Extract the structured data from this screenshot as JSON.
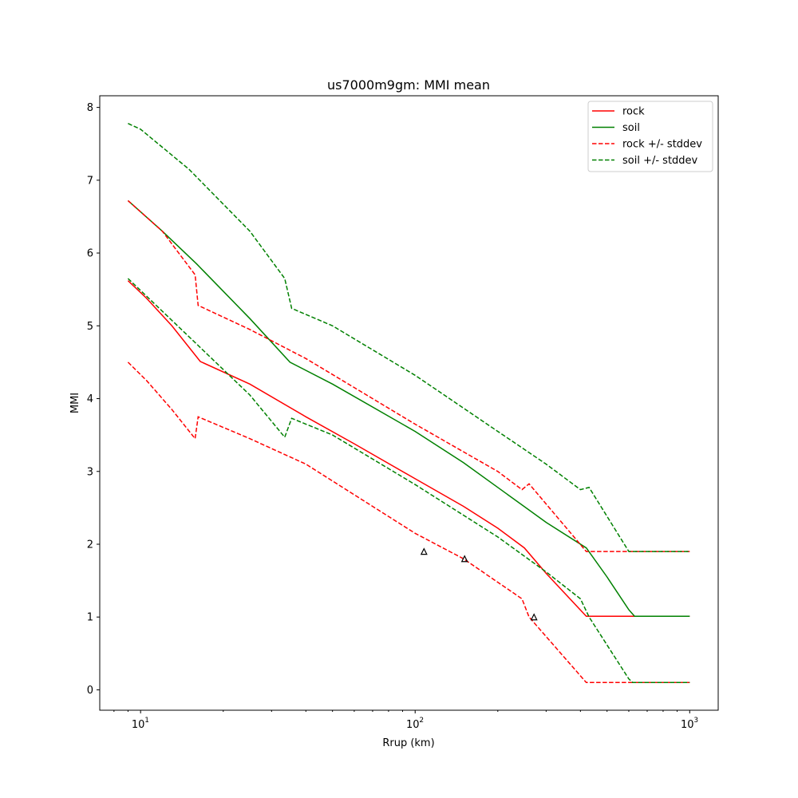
{
  "chart_data": {
    "type": "line",
    "title": "us7000m9gm: MMI mean",
    "xlabel": "Rrup (km)",
    "ylabel": "MMI",
    "xscale": "log",
    "xlim": [
      7.1,
      1270
    ],
    "ylim": [
      -0.28,
      8.16
    ],
    "xticks": [
      {
        "v": 10,
        "base": "10",
        "exp": "1"
      },
      {
        "v": 100,
        "base": "10",
        "exp": "2"
      },
      {
        "v": 1000,
        "base": "10",
        "exp": "3"
      }
    ],
    "yticks": [
      0,
      1,
      2,
      3,
      4,
      5,
      6,
      7,
      8
    ],
    "legend_position": "top-right",
    "series": [
      {
        "name": "rock",
        "color": "#ff0000",
        "dash": false,
        "points": [
          [
            9,
            5.62
          ],
          [
            10.5,
            5.38
          ],
          [
            13,
            5.0
          ],
          [
            16.5,
            4.51
          ],
          [
            25,
            4.2
          ],
          [
            40,
            3.75
          ],
          [
            60,
            3.38
          ],
          [
            100,
            2.9
          ],
          [
            150,
            2.52
          ],
          [
            200,
            2.22
          ],
          [
            250,
            1.95
          ],
          [
            300,
            1.6
          ],
          [
            420,
            1.01
          ],
          [
            1000,
            1.01
          ]
        ]
      },
      {
        "name": "soil",
        "color": "#008000",
        "dash": false,
        "points": [
          [
            9,
            6.72
          ],
          [
            12,
            6.3
          ],
          [
            16,
            5.85
          ],
          [
            25,
            5.1
          ],
          [
            35,
            4.5
          ],
          [
            50,
            4.2
          ],
          [
            100,
            3.55
          ],
          [
            150,
            3.12
          ],
          [
            200,
            2.78
          ],
          [
            300,
            2.3
          ],
          [
            420,
            1.95
          ],
          [
            500,
            1.55
          ],
          [
            600,
            1.1
          ],
          [
            630,
            1.01
          ],
          [
            1000,
            1.01
          ]
        ]
      },
      {
        "name": "rock +/- stddev",
        "color": "#ff0000",
        "dash": true,
        "lines": [
          [
            [
              9,
              6.72
            ],
            [
              12,
              6.3
            ],
            [
              15.8,
              5.7
            ],
            [
              16.2,
              5.28
            ],
            [
              25,
              4.95
            ],
            [
              40,
              4.55
            ],
            [
              100,
              3.65
            ],
            [
              200,
              3.0
            ],
            [
              245,
              2.75
            ],
            [
              260,
              2.83
            ],
            [
              420,
              1.9
            ],
            [
              1000,
              1.9
            ]
          ],
          [
            [
              9,
              4.5
            ],
            [
              10.5,
              4.25
            ],
            [
              13,
              3.85
            ],
            [
              15.8,
              3.45
            ],
            [
              16.2,
              3.75
            ],
            [
              25,
              3.45
            ],
            [
              40,
              3.1
            ],
            [
              100,
              2.15
            ],
            [
              150,
              1.8
            ],
            [
              245,
              1.25
            ],
            [
              260,
              1.0
            ],
            [
              420,
              0.1
            ],
            [
              1000,
              0.1
            ]
          ]
        ]
      },
      {
        "name": "soil +/- stddev",
        "color": "#008000",
        "dash": true,
        "lines": [
          [
            [
              9,
              7.78
            ],
            [
              10,
              7.7
            ],
            [
              15,
              7.15
            ],
            [
              25,
              6.3
            ],
            [
              33.5,
              5.65
            ],
            [
              35.5,
              5.24
            ],
            [
              50,
              5.0
            ],
            [
              100,
              4.32
            ],
            [
              200,
              3.55
            ],
            [
              300,
              3.1
            ],
            [
              400,
              2.75
            ],
            [
              430,
              2.78
            ],
            [
              600,
              1.9
            ],
            [
              1000,
              1.9
            ]
          ],
          [
            [
              9,
              5.65
            ],
            [
              12,
              5.2
            ],
            [
              16,
              4.75
            ],
            [
              25,
              4.05
            ],
            [
              33.5,
              3.47
            ],
            [
              35.5,
              3.73
            ],
            [
              50,
              3.5
            ],
            [
              100,
              2.82
            ],
            [
              200,
              2.1
            ],
            [
              300,
              1.62
            ],
            [
              400,
              1.25
            ],
            [
              430,
              1.0
            ],
            [
              600,
              0.15
            ],
            [
              620,
              0.1
            ],
            [
              1000,
              0.1
            ]
          ]
        ]
      }
    ],
    "observations": {
      "marker": "triangle",
      "points": [
        [
          107.7,
          1.9
        ],
        [
          151.4,
          1.8
        ],
        [
          271,
          1.0
        ]
      ]
    }
  }
}
